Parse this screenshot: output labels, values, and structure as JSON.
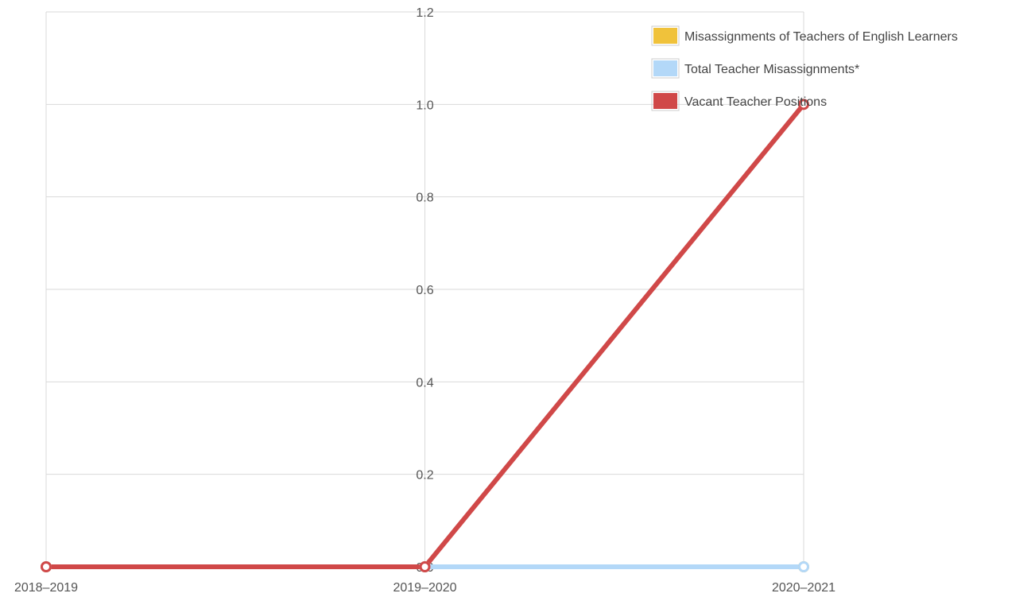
{
  "chart_data": {
    "type": "line",
    "title": "",
    "xlabel": "",
    "ylabel": "",
    "categories": [
      "2018–2019",
      "2019–2020",
      "2020–2021"
    ],
    "ylim": [
      0,
      1.2
    ],
    "yticks": [
      "0.0",
      "0.2",
      "0.4",
      "0.6",
      "0.8",
      "1.0",
      "1.2"
    ],
    "grid": true,
    "legend_position": "top-right",
    "series": [
      {
        "name": "Misassignments of Teachers of English Learners",
        "color": "#f0c23b",
        "values": [
          0,
          0,
          0
        ]
      },
      {
        "name": "Total Teacher Misassignments*",
        "color": "#b3d8f8",
        "values": [
          0,
          0,
          0
        ]
      },
      {
        "name": "Vacant Teacher Positions",
        "color": "#d04848",
        "values": [
          0,
          0,
          1
        ]
      }
    ]
  }
}
